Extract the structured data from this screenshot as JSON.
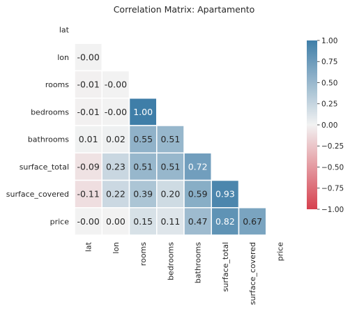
{
  "chart_data": {
    "type": "heatmap",
    "title": "Correlation Matrix: Apartamento",
    "variables": [
      "lat",
      "lon",
      "rooms",
      "bedrooms",
      "bathrooms",
      "surface_total",
      "surface_covered",
      "price"
    ],
    "mask": "upper-triangle",
    "matrix": [
      [
        null,
        null,
        null,
        null,
        null,
        null,
        null,
        null
      ],
      [
        -0.0,
        null,
        null,
        null,
        null,
        null,
        null,
        null
      ],
      [
        -0.01,
        -0.0,
        null,
        null,
        null,
        null,
        null,
        null
      ],
      [
        -0.01,
        -0.0,
        1.0,
        null,
        null,
        null,
        null,
        null
      ],
      [
        0.01,
        0.02,
        0.55,
        0.51,
        null,
        null,
        null,
        null
      ],
      [
        -0.09,
        0.23,
        0.51,
        0.51,
        0.72,
        null,
        null,
        null
      ],
      [
        -0.11,
        0.22,
        0.39,
        0.2,
        0.59,
        0.93,
        null,
        null
      ],
      [
        -0.0,
        0.0,
        0.15,
        0.11,
        0.47,
        0.82,
        0.67,
        null
      ]
    ],
    "cell_labels": [
      [
        null,
        null,
        null,
        null,
        null,
        null,
        null,
        null
      ],
      [
        "-0.00",
        null,
        null,
        null,
        null,
        null,
        null,
        null
      ],
      [
        "-0.01",
        "-0.00",
        null,
        null,
        null,
        null,
        null,
        null
      ],
      [
        "-0.01",
        "-0.00",
        "1.00",
        null,
        null,
        null,
        null,
        null
      ],
      [
        "0.01",
        "0.02",
        "0.55",
        "0.51",
        null,
        null,
        null,
        null
      ],
      [
        "-0.09",
        "0.23",
        "0.51",
        "0.51",
        "0.72",
        null,
        null,
        null
      ],
      [
        "-0.11",
        "0.22",
        "0.39",
        "0.20",
        "0.59",
        "0.93",
        null,
        null
      ],
      [
        "-0.00",
        "0.00",
        "0.15",
        "0.11",
        "0.47",
        "0.82",
        "0.67",
        null
      ]
    ],
    "colorbar": {
      "range": [
        -1,
        1
      ],
      "ticks": [
        "1.00",
        "0.75",
        "0.50",
        "0.25",
        "0.00",
        "−0.25",
        "−0.50",
        "−0.75",
        "−1.00"
      ],
      "tick_values": [
        1,
        0.75,
        0.5,
        0.25,
        0,
        -0.25,
        -0.5,
        -0.75,
        -1
      ],
      "colors": {
        "negative": "#d6404e",
        "neutral": "#f2f2f2",
        "positive": "#3f7ea8"
      }
    },
    "grid": false
  }
}
